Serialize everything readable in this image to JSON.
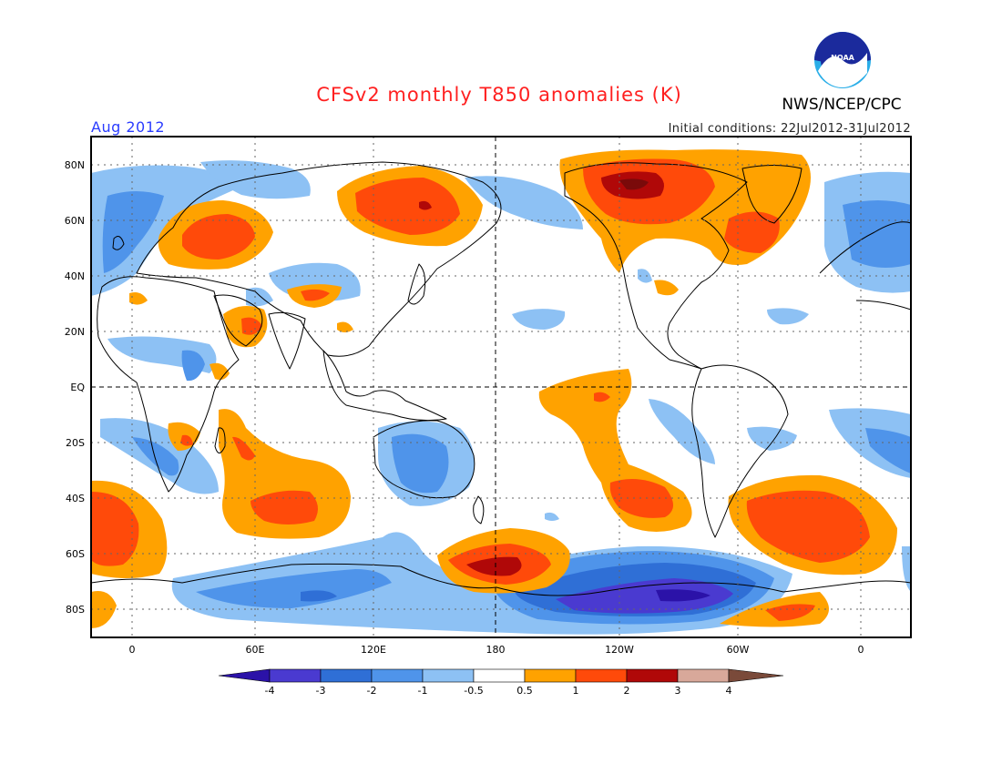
{
  "title": "CFSv2 monthly T850 anomalies (K)",
  "period": "Aug 2012",
  "initial_conditions": "Initial conditions: 22Jul2012-31Jul2012",
  "agency": "NWS/NCEP/CPC",
  "logo_text": "NOAA",
  "lat_labels": [
    "80N",
    "60N",
    "40N",
    "20N",
    "EQ",
    "20S",
    "40S",
    "60S",
    "80S"
  ],
  "lon_labels": [
    "0",
    "60E",
    "120E",
    "180",
    "120W",
    "60W",
    "0"
  ],
  "colorbar": {
    "labels": [
      "-4",
      "-3",
      "-2",
      "-1",
      "-0.5",
      "0.5",
      "1",
      "2",
      "3",
      "4"
    ],
    "colors": [
      "#2b12a8",
      "#4a3ad0",
      "#2f6fd6",
      "#4f94ea",
      "#8dc1f4",
      "#ffffff",
      "#ffa200",
      "#ff4a0a",
      "#b00808",
      "#d8a89a",
      "#7a4a3a"
    ]
  },
  "colors": {
    "lt_blue": "#8dc1f4",
    "md_blue": "#4f94ea",
    "dk_blue": "#2f6fd6",
    "indigo": "#4a3ad0",
    "orange": "#ffa200",
    "red_orange": "#ff4a0a",
    "dark_red": "#b00808"
  }
}
